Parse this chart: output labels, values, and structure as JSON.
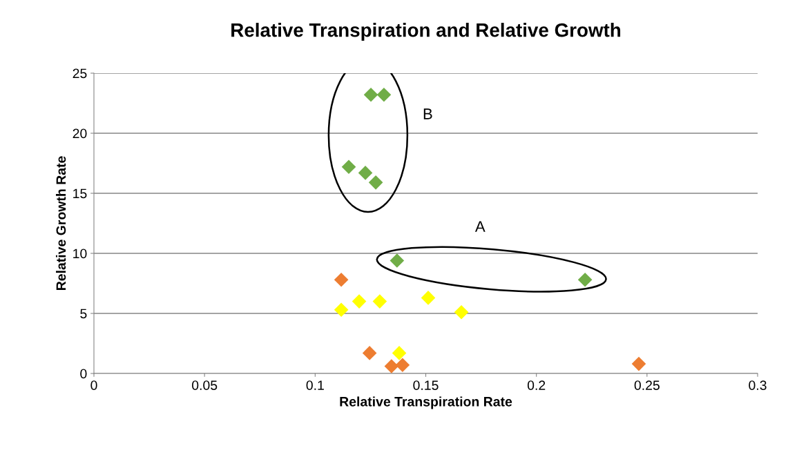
{
  "chart_data": {
    "type": "scatter",
    "title": "Relative Transpiration and Relative Growth",
    "xlabel": "Relative Transpiration Rate",
    "ylabel": "Relative Growth Rate",
    "xlim": [
      0,
      0.3
    ],
    "xticks": [
      0,
      0.05,
      0.1,
      0.15,
      0.2,
      0.25,
      0.3
    ],
    "ylim": [
      0,
      25
    ],
    "yticks": [
      0,
      5,
      10,
      15,
      20,
      25
    ],
    "grid": "y",
    "marker": "diamond",
    "legend": false,
    "annotations": [
      "A",
      "B"
    ],
    "series": [
      {
        "color": "#70ad47",
        "x": [
          0.1252,
          0.1311,
          0.1152,
          0.1227,
          0.1274,
          0.137,
          0.222
        ],
        "values": [
          23.2,
          23.2,
          17.2,
          16.7,
          15.9,
          9.4,
          7.8
        ]
      },
      {
        "color": "#ed7d31",
        "x": [
          0.1118,
          0.1246,
          0.1345,
          0.1395,
          0.2463
        ],
        "values": [
          7.8,
          1.7,
          0.6,
          0.7,
          0.8
        ]
      },
      {
        "color": "#ffff00",
        "x": [
          0.1118,
          0.1199,
          0.1292,
          0.138,
          0.1511,
          0.1661
        ],
        "values": [
          5.3,
          6.0,
          6.0,
          1.7,
          6.3,
          5.1
        ]
      }
    ]
  }
}
